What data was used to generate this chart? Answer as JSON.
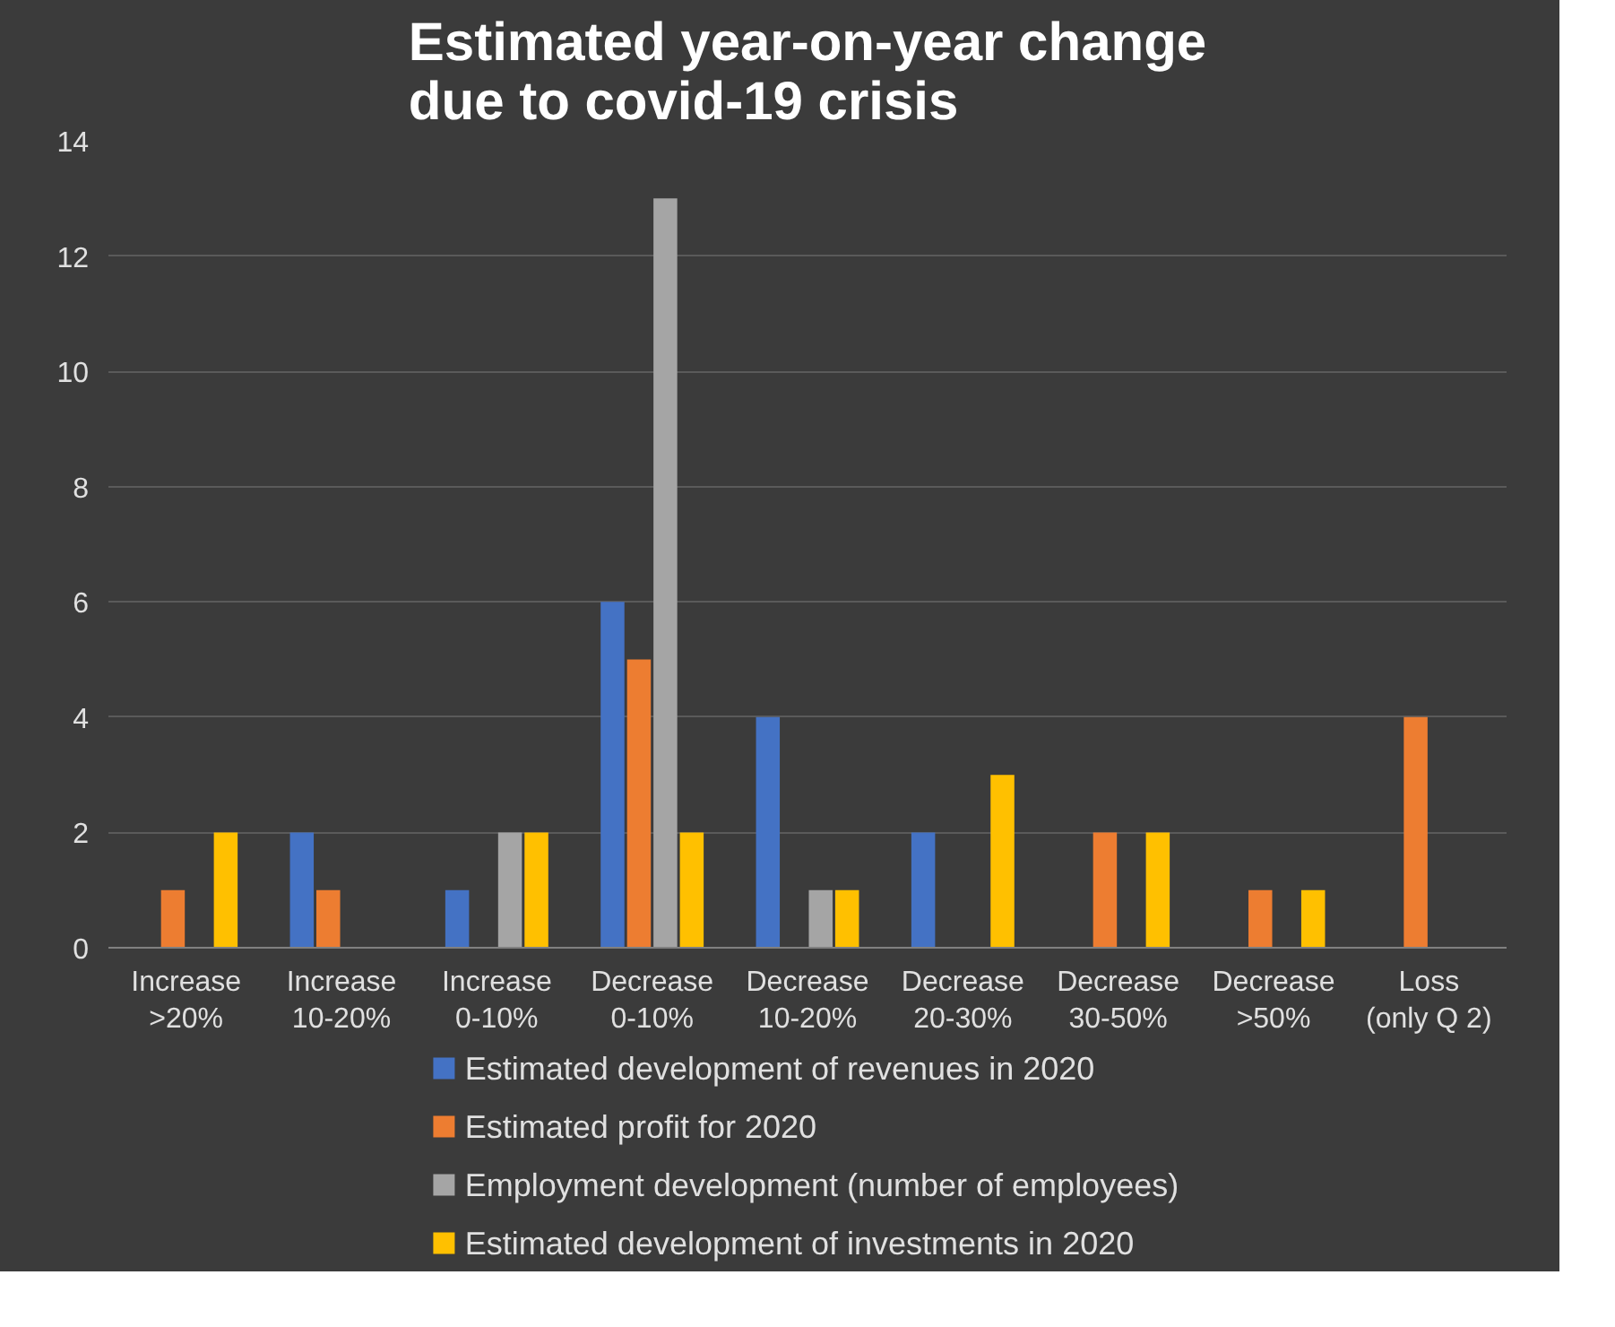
{
  "chart_data": {
    "type": "bar",
    "title": "Estimated year-on-year change\ndue to covid-19 crisis",
    "categories": [
      "Increase >20%",
      "Increase 10-20%",
      "Increase 0-10%",
      "Decrease 0-10%",
      "Decrease 10-20%",
      "Decrease 20-30%",
      "Decrease 30-50%",
      "Decrease >50%",
      "Loss (only Q 2)"
    ],
    "series": [
      {
        "name": "Estimated development of revenues in 2020",
        "color": "#4472c4",
        "values": [
          0,
          2,
          1,
          6,
          4,
          2,
          0,
          0,
          0
        ]
      },
      {
        "name": "Estimated profit for 2020",
        "color": "#ed7d31",
        "values": [
          1,
          1,
          0,
          5,
          0,
          0,
          2,
          1,
          4
        ]
      },
      {
        "name": "Employment development (number of employees)",
        "color": "#a5a5a5",
        "values": [
          0,
          0,
          2,
          13,
          1,
          0,
          0,
          0,
          0
        ]
      },
      {
        "name": "Estimated development of investments in 2020",
        "color": "#ffc000",
        "values": [
          2,
          0,
          2,
          2,
          1,
          3,
          2,
          1,
          0
        ]
      }
    ],
    "ylim": [
      0,
      14
    ],
    "yticks": [
      0,
      2,
      4,
      6,
      8,
      10,
      12,
      14
    ],
    "grid": "y",
    "legend": "bottom"
  }
}
